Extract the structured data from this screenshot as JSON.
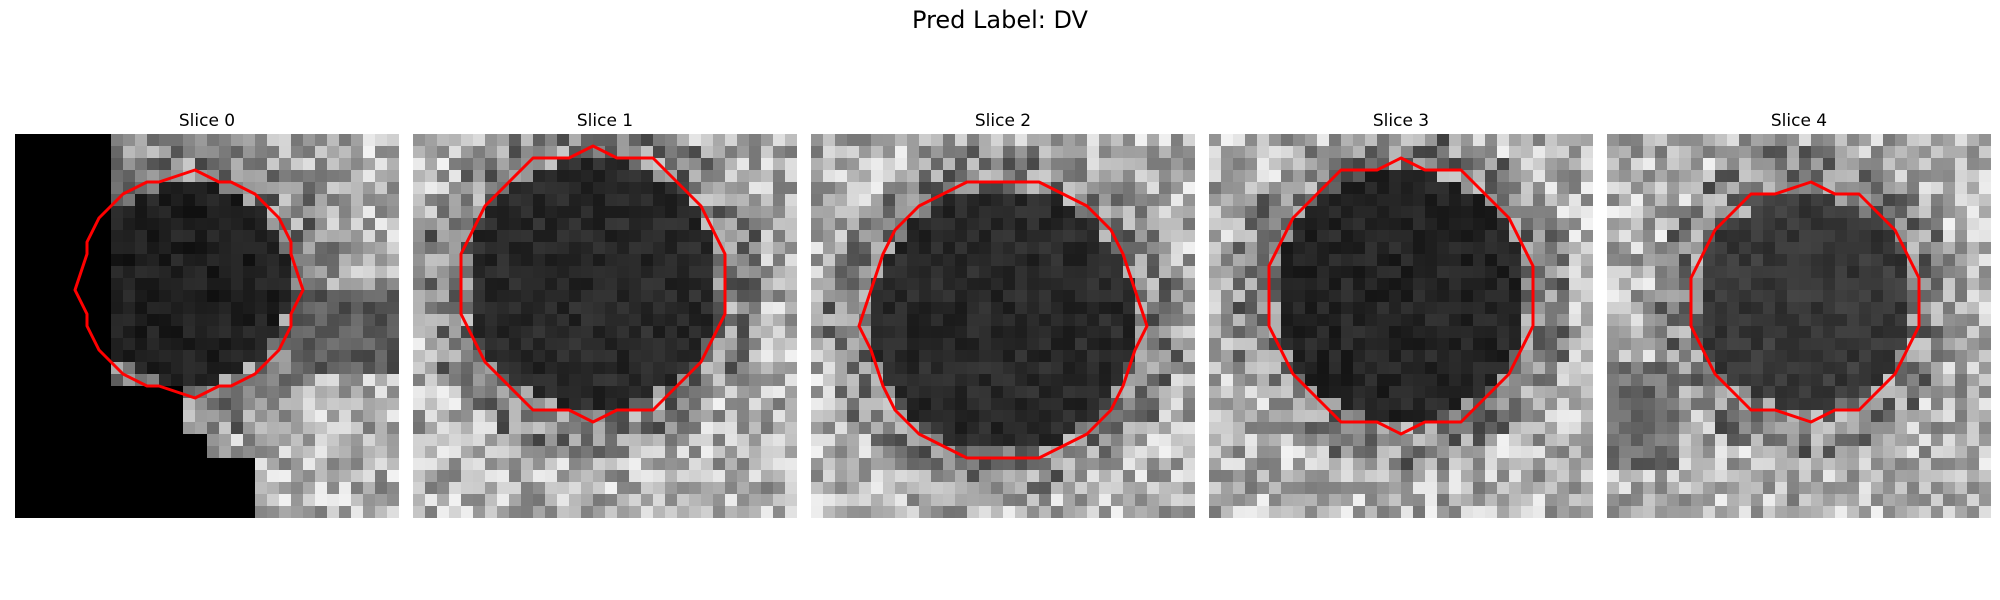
{
  "figure": {
    "title": "Pred Label: DV",
    "contour_color": "#ff0000"
  },
  "slices": [
    {
      "label": "Slice 0"
    },
    {
      "label": "Slice 1"
    },
    {
      "label": "Slice 2"
    },
    {
      "label": "Slice 3"
    },
    {
      "label": "Slice 4"
    }
  ]
}
